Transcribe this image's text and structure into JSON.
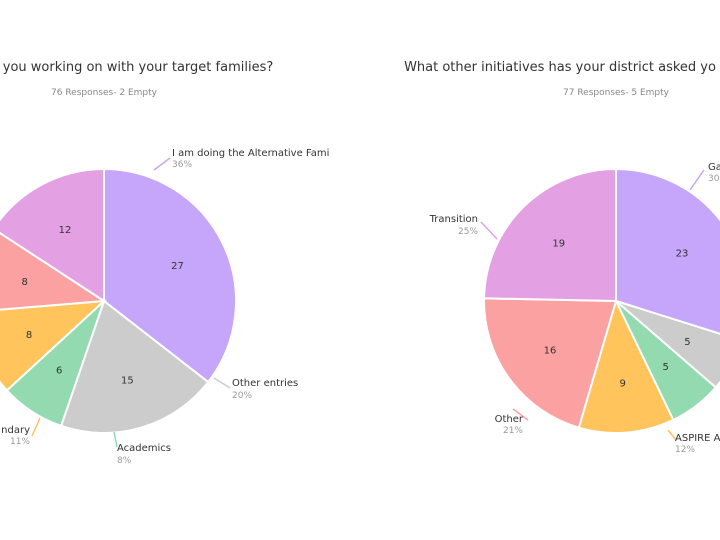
{
  "chart_data": [
    {
      "type": "pie",
      "title": "you working on with your target families?",
      "subtitle": "76 Responses- 2 Empty",
      "slices": [
        {
          "value": 27,
          "color": "#c6a6fb",
          "label": "I am doing the Alternative Fami",
          "pct": "36%"
        },
        {
          "value": 15,
          "color": "#cccccc",
          "label": "Other entries",
          "pct": "20%"
        },
        {
          "value": 6,
          "color": "#93dab0",
          "label": "Academics",
          "pct": "8%"
        },
        {
          "value": 8,
          "color": "#ffc45c",
          "label": "ndary",
          "pct": "11%"
        },
        {
          "value": 8,
          "color": "#fca1a2",
          "label": "",
          "pct": ""
        },
        {
          "value": 12,
          "color": "#e3a1e3",
          "label": "",
          "pct": ""
        }
      ]
    },
    {
      "type": "pie",
      "title": "What other initiatives has your district asked yo",
      "subtitle": "77 Responses- 5 Empty",
      "slices": [
        {
          "value": 23,
          "color": "#c6a6fb",
          "label": "Ga",
          "pct": "30"
        },
        {
          "value": 5,
          "color": "#cccccc",
          "label": "",
          "pct": ""
        },
        {
          "value": 5,
          "color": "#93dab0",
          "label": "",
          "pct": ""
        },
        {
          "value": 9,
          "color": "#ffc45c",
          "label": "ASPIRE A",
          "pct": "12%"
        },
        {
          "value": 16,
          "color": "#fca1a2",
          "label": "Other",
          "pct": "21%"
        },
        {
          "value": 19,
          "color": "#e3a1e3",
          "label": "Transition",
          "pct": "25%"
        }
      ]
    }
  ]
}
